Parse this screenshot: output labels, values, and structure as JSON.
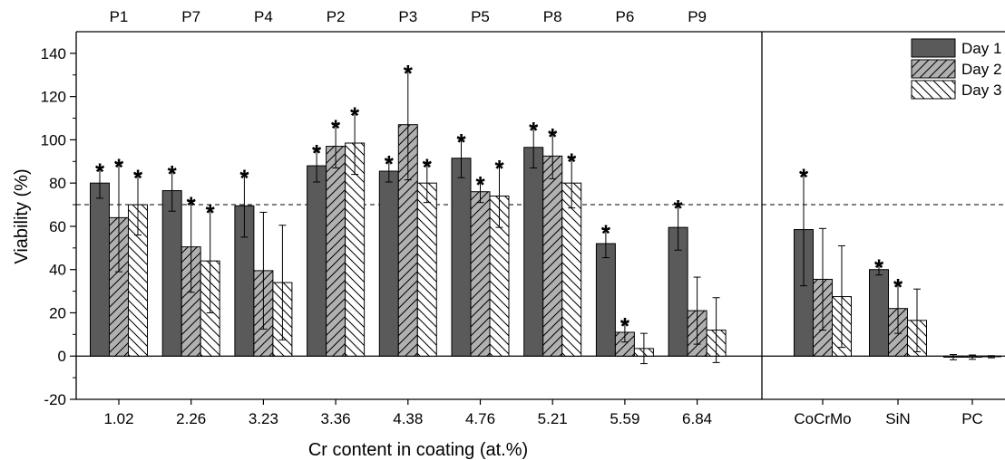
{
  "chart_data": {
    "type": "bar",
    "xlabel": "Cr content in coating (at.%)",
    "ylabel": "Viability (%)",
    "ylim": [
      -20,
      150
    ],
    "yticks": [
      -20,
      0,
      20,
      40,
      60,
      80,
      100,
      120,
      140
    ],
    "reference_line": 70,
    "legend_position": "top-right",
    "legend": [
      "Day 1",
      "Day 2",
      "Day 3"
    ],
    "series": [
      {
        "name": "Day 1",
        "color": "#5a5a5a",
        "pattern": "solid"
      },
      {
        "name": "Day 2",
        "color": "#b0b0b0",
        "pattern": "forward-hatch"
      },
      {
        "name": "Day 3",
        "color": "#ffffff",
        "pattern": "back-hatch"
      }
    ],
    "groups": [
      {
        "sample": "P1",
        "category": "1.02",
        "values": [
          80,
          64,
          70
        ],
        "errors": [
          7,
          25,
          14
        ],
        "significant": [
          true,
          true,
          true
        ]
      },
      {
        "sample": "P7",
        "category": "2.26",
        "values": [
          76.5,
          50.5,
          44
        ],
        "errors": [
          9.5,
          21,
          24
        ],
        "significant": [
          true,
          true,
          true
        ]
      },
      {
        "sample": "P4",
        "category": "3.23",
        "values": [
          69.5,
          39.5,
          34
        ],
        "errors": [
          14.5,
          27,
          26.5
        ],
        "significant": [
          true,
          false,
          false
        ]
      },
      {
        "sample": "P2",
        "category": "3.36",
        "values": [
          88,
          97,
          98.5
        ],
        "errors": [
          7.5,
          10,
          14.5
        ],
        "significant": [
          true,
          true,
          true
        ]
      },
      {
        "sample": "P3",
        "category": "4.38",
        "values": [
          85.5,
          107,
          80
        ],
        "errors": [
          5,
          25.5,
          9
        ],
        "significant": [
          true,
          true,
          true
        ]
      },
      {
        "sample": "P5",
        "category": "4.76",
        "values": [
          91.5,
          76,
          74
        ],
        "errors": [
          9,
          5,
          14.5
        ],
        "significant": [
          true,
          true,
          true
        ]
      },
      {
        "sample": "P8",
        "category": "5.21",
        "values": [
          96.5,
          92.5,
          80
        ],
        "errors": [
          9.5,
          10.5,
          11.5
        ],
        "significant": [
          true,
          true,
          true
        ]
      },
      {
        "sample": "P6",
        "category": "5.59",
        "values": [
          52,
          11,
          3.5
        ],
        "errors": [
          6.5,
          4.5,
          7
        ],
        "significant": [
          true,
          true,
          false
        ]
      },
      {
        "sample": "P9",
        "category": "6.84",
        "values": [
          59.5,
          21,
          12
        ],
        "errors": [
          10.5,
          15.5,
          15
        ],
        "significant": [
          true,
          false,
          false
        ]
      }
    ],
    "control_groups": [
      {
        "category": "CoCrMo",
        "values": [
          58.5,
          35.5,
          27.5
        ],
        "errors": [
          26,
          23.5,
          23.5
        ],
        "significant": [
          true,
          false,
          false
        ]
      },
      {
        "category": "SiN",
        "values": [
          40,
          22,
          16.5
        ],
        "errors": [
          2.5,
          11.5,
          14.5
        ],
        "significant": [
          true,
          true,
          false
        ]
      },
      {
        "category": "PC",
        "values": [
          -0.5,
          -0.5,
          -0.3
        ],
        "errors": [
          1.2,
          1,
          0.5
        ],
        "significant": [
          false,
          false,
          false
        ]
      }
    ]
  }
}
